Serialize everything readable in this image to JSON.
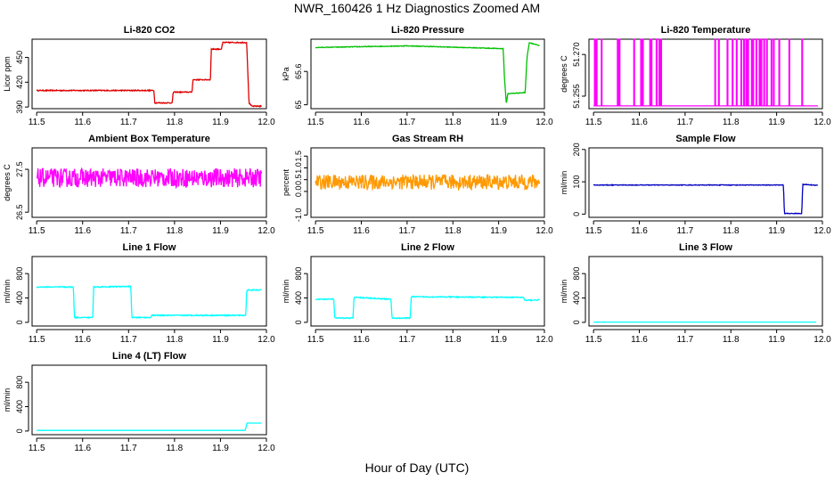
{
  "page": {
    "title": "NWR_160426  1 Hz Diagnostics Zoomed AM",
    "xlabel": "Hour of Day (UTC)"
  },
  "chart_data": [
    {
      "type": "line",
      "title": "Li-820 CO2",
      "ylabel": "Licor ppm",
      "color": "#e00000",
      "xlim": [
        11.49,
        12.0
      ],
      "ylim": [
        388,
        472
      ],
      "xticks": [
        "11.5",
        "11.6",
        "11.7",
        "11.8",
        "11.9",
        "12.0"
      ],
      "yticks": [
        390,
        420,
        450
      ],
      "series": [
        {
          "x": [
            11.5,
            11.755,
            11.757,
            11.795,
            11.797,
            11.838,
            11.84,
            11.878,
            11.88,
            11.902,
            11.905,
            11.957,
            11.962,
            11.968,
            11.99
          ],
          "y": [
            410,
            410,
            395,
            395,
            408,
            408,
            423,
            423,
            460,
            460,
            468,
            468,
            395,
            391,
            391
          ],
          "noise": 0.6
        }
      ]
    },
    {
      "type": "line",
      "title": "Li-820 Pressure",
      "ylabel": "kPa",
      "color": "#00c000",
      "xlim": [
        11.49,
        12.0
      ],
      "ylim": [
        64.93,
        66.18
      ],
      "xticks": [
        "11.5",
        "11.6",
        "11.7",
        "11.8",
        "11.9",
        "12.0"
      ],
      "yticks": [
        65.0,
        65.6
      ],
      "series": [
        {
          "x": [
            11.5,
            11.7,
            11.91,
            11.913,
            11.917,
            11.92,
            11.958,
            11.962,
            11.967,
            11.99
          ],
          "y": [
            66.03,
            66.06,
            66.01,
            65.45,
            65.01,
            65.2,
            65.22,
            65.85,
            66.12,
            66.06
          ],
          "noise": 0.006
        }
      ]
    },
    {
      "type": "line",
      "title": "Li-820 Temperature",
      "ylabel": "degrees C",
      "color": "#ff00ff",
      "xlim": [
        11.49,
        12.0
      ],
      "ylim": [
        51.2505,
        51.2755
      ],
      "xticks": [
        "11.5",
        "11.6",
        "11.7",
        "11.8",
        "11.9",
        "12.0"
      ],
      "yticks": [
        51.255,
        51.27
      ],
      "yticklabels": [
        "51.255",
        "51.270"
      ],
      "series": [
        {
          "baseline": 51.2515,
          "spike": 51.2755,
          "spikes": [
            11.502,
            11.506,
            11.517,
            11.552,
            11.556,
            11.588,
            11.603,
            11.607,
            11.623,
            11.626,
            11.637,
            11.643,
            11.647,
            11.765,
            11.773,
            11.792,
            11.803,
            11.812,
            11.822,
            11.828,
            11.833,
            11.837,
            11.845,
            11.848,
            11.855,
            11.862,
            11.866,
            11.872,
            11.878,
            11.888,
            11.893,
            11.905,
            11.927,
            11.955
          ]
        }
      ]
    },
    {
      "type": "line",
      "title": "Ambient Box Temperature",
      "ylabel": "degrees C",
      "color": "#ff00ff",
      "xlim": [
        11.49,
        12.0
      ],
      "ylim": [
        26.38,
        28.0
      ],
      "xticks": [
        "11.5",
        "11.6",
        "11.7",
        "11.8",
        "11.9",
        "12.0"
      ],
      "yticks": [
        26.5,
        27.5
      ],
      "series": [
        {
          "x": [
            11.5,
            11.99
          ],
          "y": [
            27.3,
            27.3
          ],
          "noise": 0.22
        }
      ]
    },
    {
      "type": "line",
      "title": "Gas Stream RH",
      "ylabel": "percent",
      "color": "#ff9900",
      "xlim": [
        11.49,
        12.0
      ],
      "ylim": [
        -1.1,
        1.85
      ],
      "xticks": [
        "11.5",
        "11.6",
        "11.7",
        "11.8",
        "11.9",
        "12.0"
      ],
      "yticks": [
        -1.0,
        0.0,
        0.5,
        1.0,
        1.5
      ],
      "yticklabels": [
        "-1.0",
        "0.0",
        "0.5",
        "1.0",
        "1.5"
      ],
      "series": [
        {
          "x": [
            11.5,
            11.99
          ],
          "y": [
            0.4,
            0.4
          ],
          "noise": 0.32
        }
      ]
    },
    {
      "type": "line",
      "title": "Sample Flow",
      "ylabel": "ml/min",
      "color": "#0000c0",
      "xlim": [
        11.49,
        12.0
      ],
      "ylim": [
        -10,
        205
      ],
      "xticks": [
        "11.5",
        "11.6",
        "11.7",
        "11.8",
        "11.9",
        "12.0"
      ],
      "yticks": [
        0,
        100,
        200
      ],
      "series": [
        {
          "x": [
            11.5,
            11.915,
            11.917,
            11.955,
            11.957,
            11.99
          ],
          "y": [
            90,
            90,
            2,
            2,
            92,
            89
          ],
          "noise": 1.0
        }
      ]
    },
    {
      "type": "line",
      "title": "Line 1 Flow",
      "ylabel": "ml/min",
      "color": "#00ffff",
      "xlim": [
        11.49,
        12.0
      ],
      "ylim": [
        -60,
        1080
      ],
      "xticks": [
        "11.5",
        "11.6",
        "11.7",
        "11.8",
        "11.9",
        "12.0"
      ],
      "yticks": [
        0,
        400,
        800
      ],
      "series": [
        {
          "x": [
            11.5,
            11.58,
            11.582,
            11.622,
            11.624,
            11.705,
            11.707,
            11.748,
            11.75,
            11.955,
            11.957,
            11.99
          ],
          "y": [
            580,
            580,
            80,
            80,
            580,
            590,
            80,
            80,
            115,
            115,
            530,
            530
          ],
          "noise": 8
        }
      ]
    },
    {
      "type": "line",
      "title": "Line 2 Flow",
      "ylabel": "ml/min",
      "color": "#00ffff",
      "xlim": [
        11.49,
        12.0
      ],
      "ylim": [
        -60,
        1080
      ],
      "xticks": [
        "11.5",
        "11.6",
        "11.7",
        "11.8",
        "11.9",
        "12.0"
      ],
      "yticks": [
        0,
        400,
        800
      ],
      "series": [
        {
          "x": [
            11.5,
            11.54,
            11.542,
            11.582,
            11.584,
            11.665,
            11.667,
            11.707,
            11.709,
            11.955,
            11.957,
            11.99
          ],
          "y": [
            380,
            380,
            70,
            70,
            410,
            380,
            70,
            70,
            420,
            410,
            360,
            370
          ],
          "noise": 8
        }
      ]
    },
    {
      "type": "line",
      "title": "Line 3 Flow",
      "ylabel": "ml/min",
      "color": "#00ffff",
      "xlim": [
        11.49,
        12.0
      ],
      "ylim": [
        -60,
        1080
      ],
      "xticks": [
        "11.5",
        "11.6",
        "11.7",
        "11.8",
        "11.9",
        "12.0"
      ],
      "yticks": [
        0,
        400,
        800
      ],
      "series": [
        {
          "x": [
            11.5,
            11.99
          ],
          "y": [
            5,
            5
          ],
          "noise": 0
        }
      ]
    },
    {
      "type": "line",
      "title": "Line 4 (LT) Flow",
      "ylabel": "ml/min",
      "color": "#00ffff",
      "xlim": [
        11.49,
        12.0
      ],
      "ylim": [
        -60,
        1080
      ],
      "xticks": [
        "11.5",
        "11.6",
        "11.7",
        "11.8",
        "11.9",
        "12.0"
      ],
      "yticks": [
        0,
        400,
        800
      ],
      "series": [
        {
          "x": [
            11.5,
            11.955,
            11.957,
            11.99
          ],
          "y": [
            10,
            10,
            130,
            130
          ],
          "noise": 0
        }
      ]
    }
  ]
}
